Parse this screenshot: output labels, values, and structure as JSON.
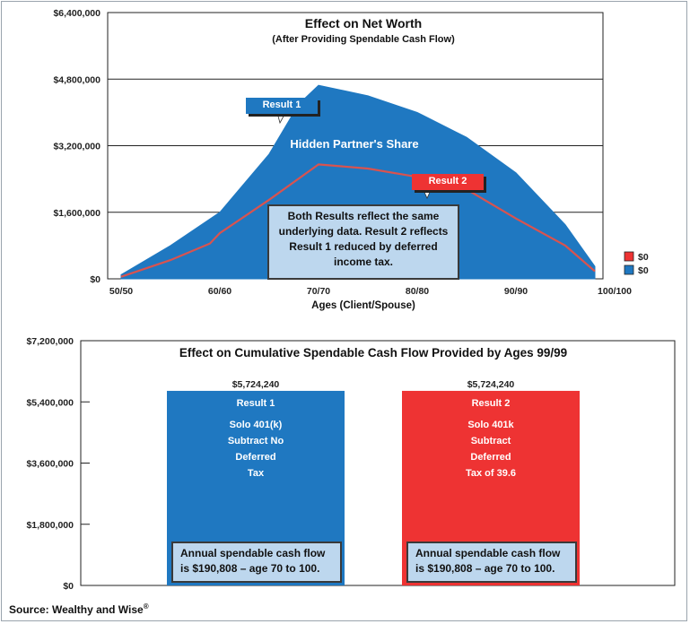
{
  "chart_data": [
    {
      "type": "area",
      "title": "Effect on Net Worth",
      "subtitle": "(After Providing Spendable Cash Flow)",
      "xlabel": "Ages (Client/Spouse)",
      "ylabel": "",
      "x_tick_labels": [
        "50/50",
        "60/60",
        "70/70",
        "80/80",
        "90/90",
        "100/100"
      ],
      "y_tick_labels": [
        "$0",
        "$1,600,000",
        "$3,200,000",
        "$4,800,000",
        "$6,400,000"
      ],
      "xlim": [
        50,
        100
      ],
      "ylim": [
        0,
        6400000
      ],
      "grid": true,
      "area_label": "Hidden Partner's Share",
      "series": [
        {
          "name": "Result 1",
          "color": "#1f78c1",
          "points": [
            [
              50,
              100000
            ],
            [
              55,
              800000
            ],
            [
              60,
              1600000
            ],
            [
              65,
              3000000
            ],
            [
              68,
              4200000
            ],
            [
              70,
              4650000
            ],
            [
              75,
              4400000
            ],
            [
              80,
              4000000
            ],
            [
              85,
              3400000
            ],
            [
              90,
              2550000
            ],
            [
              95,
              1300000
            ],
            [
              98,
              300000
            ]
          ]
        },
        {
          "name": "Result 2",
          "color": "#e0404a",
          "points": [
            [
              50,
              50000
            ],
            [
              55,
              450000
            ],
            [
              59,
              850000
            ],
            [
              60,
              1100000
            ],
            [
              65,
              1900000
            ],
            [
              70,
              2750000
            ],
            [
              75,
              2650000
            ],
            [
              80,
              2450000
            ],
            [
              85,
              2150000
            ],
            [
              90,
              1450000
            ],
            [
              95,
              800000
            ],
            [
              98,
              180000
            ]
          ]
        }
      ],
      "callouts": [
        {
          "label": "Result 1",
          "color": "#1f78c1"
        },
        {
          "label": "Result 2",
          "color": "#ee3333"
        }
      ],
      "note": "Both Results reflect the same underlying data.   Result 2 reflects Result 1 reduced by deferred income tax.",
      "legend": {
        "placement": "right",
        "entries": [
          {
            "label": "$0",
            "color": "#ee3333"
          },
          {
            "label": "$0",
            "color": "#1f78c1"
          }
        ]
      }
    },
    {
      "type": "bar",
      "title": "Effect on Cumulative Spendable Cash Flow Provided by Ages 99/99",
      "y_tick_labels": [
        "$0",
        "$1,800,000",
        "$3,600,000",
        "$5,400,000",
        "$7,200,000"
      ],
      "ylim": [
        0,
        7200000
      ],
      "grid": false,
      "bars": [
        {
          "name": "Result 1",
          "value": 5724240,
          "value_label": "$5,724,240",
          "color": "#1f78c1",
          "lines": [
            "Solo 401(k)",
            "Subtract No",
            "Deferred",
            "Tax"
          ],
          "note": "Annual spendable cash flow is $190,808 – age 70 to 100."
        },
        {
          "name": "Result 2",
          "value": 5724240,
          "value_label": "$5,724,240",
          "color": "#ee3333",
          "lines": [
            "Solo 401k",
            "Subtract",
            "Deferred",
            "Tax of 39.6"
          ],
          "note": "Annual spendable cash flow is $190,808 – age 70 to 100."
        }
      ]
    }
  ],
  "source": "Source: Wealthy and Wise",
  "source_mark": "®"
}
